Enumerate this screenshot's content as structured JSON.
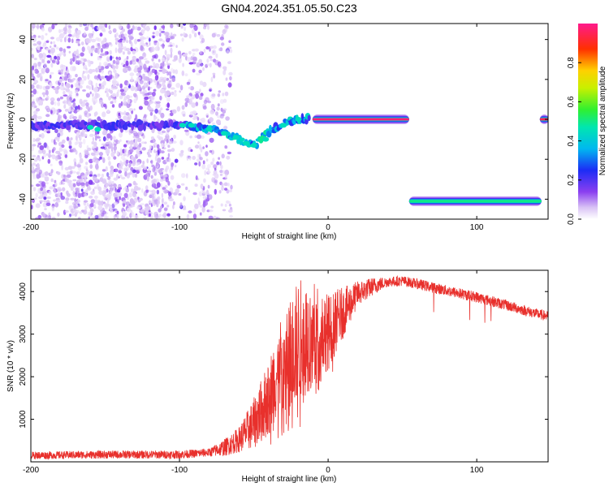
{
  "figure": {
    "title": "GN04.2024.351.05.50.C23"
  },
  "chart_data": [
    {
      "type": "heatmap",
      "title": "GN04.2024.351.05.50.C23",
      "xlabel": "Height of straight line (km)",
      "ylabel": "Frequency (Hz)",
      "xlim": [
        -200,
        148
      ],
      "ylim": [
        -50,
        48
      ],
      "x_ticks": [
        -200,
        -100,
        0,
        100
      ],
      "y_ticks": [
        -40,
        -20,
        0,
        20,
        40
      ],
      "colorbar": {
        "label": "Normalized spectral amplitude",
        "range": [
          0,
          1
        ],
        "ticks": [
          "0.0",
          "0.2",
          "0.4",
          "0.6",
          "0.8"
        ],
        "colormap": "white-purple-blue-cyan-green-yellow-red-magenta"
      },
      "features": [
        {
          "name": "noise scatter",
          "x_range": [
            -200,
            -65
          ],
          "y_range": [
            -50,
            48
          ],
          "amplitude": 0.08
        },
        {
          "name": "signal trace",
          "path": [
            [
              -200,
              -3
            ],
            [
              -160,
              -3
            ],
            [
              -120,
              -3
            ],
            [
              -95,
              -3
            ],
            [
              -80,
              -5
            ],
            [
              -65,
              -8
            ],
            [
              -55,
              -12
            ],
            [
              -48,
              -12
            ],
            [
              -40,
              -6
            ],
            [
              -30,
              -2
            ],
            [
              -20,
              0
            ],
            [
              -10,
              1
            ],
            [
              0,
              0
            ],
            [
              54,
              0
            ]
          ],
          "amplitude": 0.3
        },
        {
          "name": "strong line at 0 Hz",
          "x_range": [
            -10,
            54
          ],
          "y": 0,
          "amplitude": 0.98
        },
        {
          "name": "line at -41 Hz",
          "x_range": [
            55,
            143
          ],
          "y": -41,
          "amplitude": 0.5
        },
        {
          "name": "edge segment at 0 Hz",
          "x_range": [
            143,
            148
          ],
          "y": 0,
          "amplitude": 0.95
        }
      ]
    },
    {
      "type": "line",
      "xlabel": "Height of straight line (km)",
      "ylabel": "SNR (10 * v/v)",
      "xlim": [
        -200,
        148
      ],
      "ylim": [
        0,
        4500
      ],
      "x_ticks": [
        -200,
        -100,
        0,
        100
      ],
      "y_ticks": [
        1000,
        2000,
        3000,
        4000
      ],
      "color": "#e8302c",
      "envelope": {
        "x": [
          -200,
          -150,
          -100,
          -80,
          -70,
          -60,
          -50,
          -40,
          -35,
          -30,
          -25,
          -20,
          -15,
          -10,
          -5,
          0,
          5,
          10,
          20,
          30,
          40,
          50,
          60,
          80,
          100,
          120,
          140,
          148
        ],
        "y": [
          150,
          170,
          170,
          220,
          330,
          520,
          900,
          1500,
          2000,
          2300,
          2550,
          2800,
          2900,
          3000,
          3100,
          3050,
          3300,
          3500,
          3950,
          4120,
          4230,
          4250,
          4180,
          4020,
          3870,
          3680,
          3480,
          3420
        ]
      },
      "noise": {
        "x": [
          -200,
          -80,
          -60,
          -40,
          -20,
          0,
          20,
          40,
          100,
          148
        ],
        "amplitude": [
          90,
          100,
          300,
          900,
          1500,
          900,
          300,
          120,
          130,
          120
        ]
      }
    }
  ]
}
